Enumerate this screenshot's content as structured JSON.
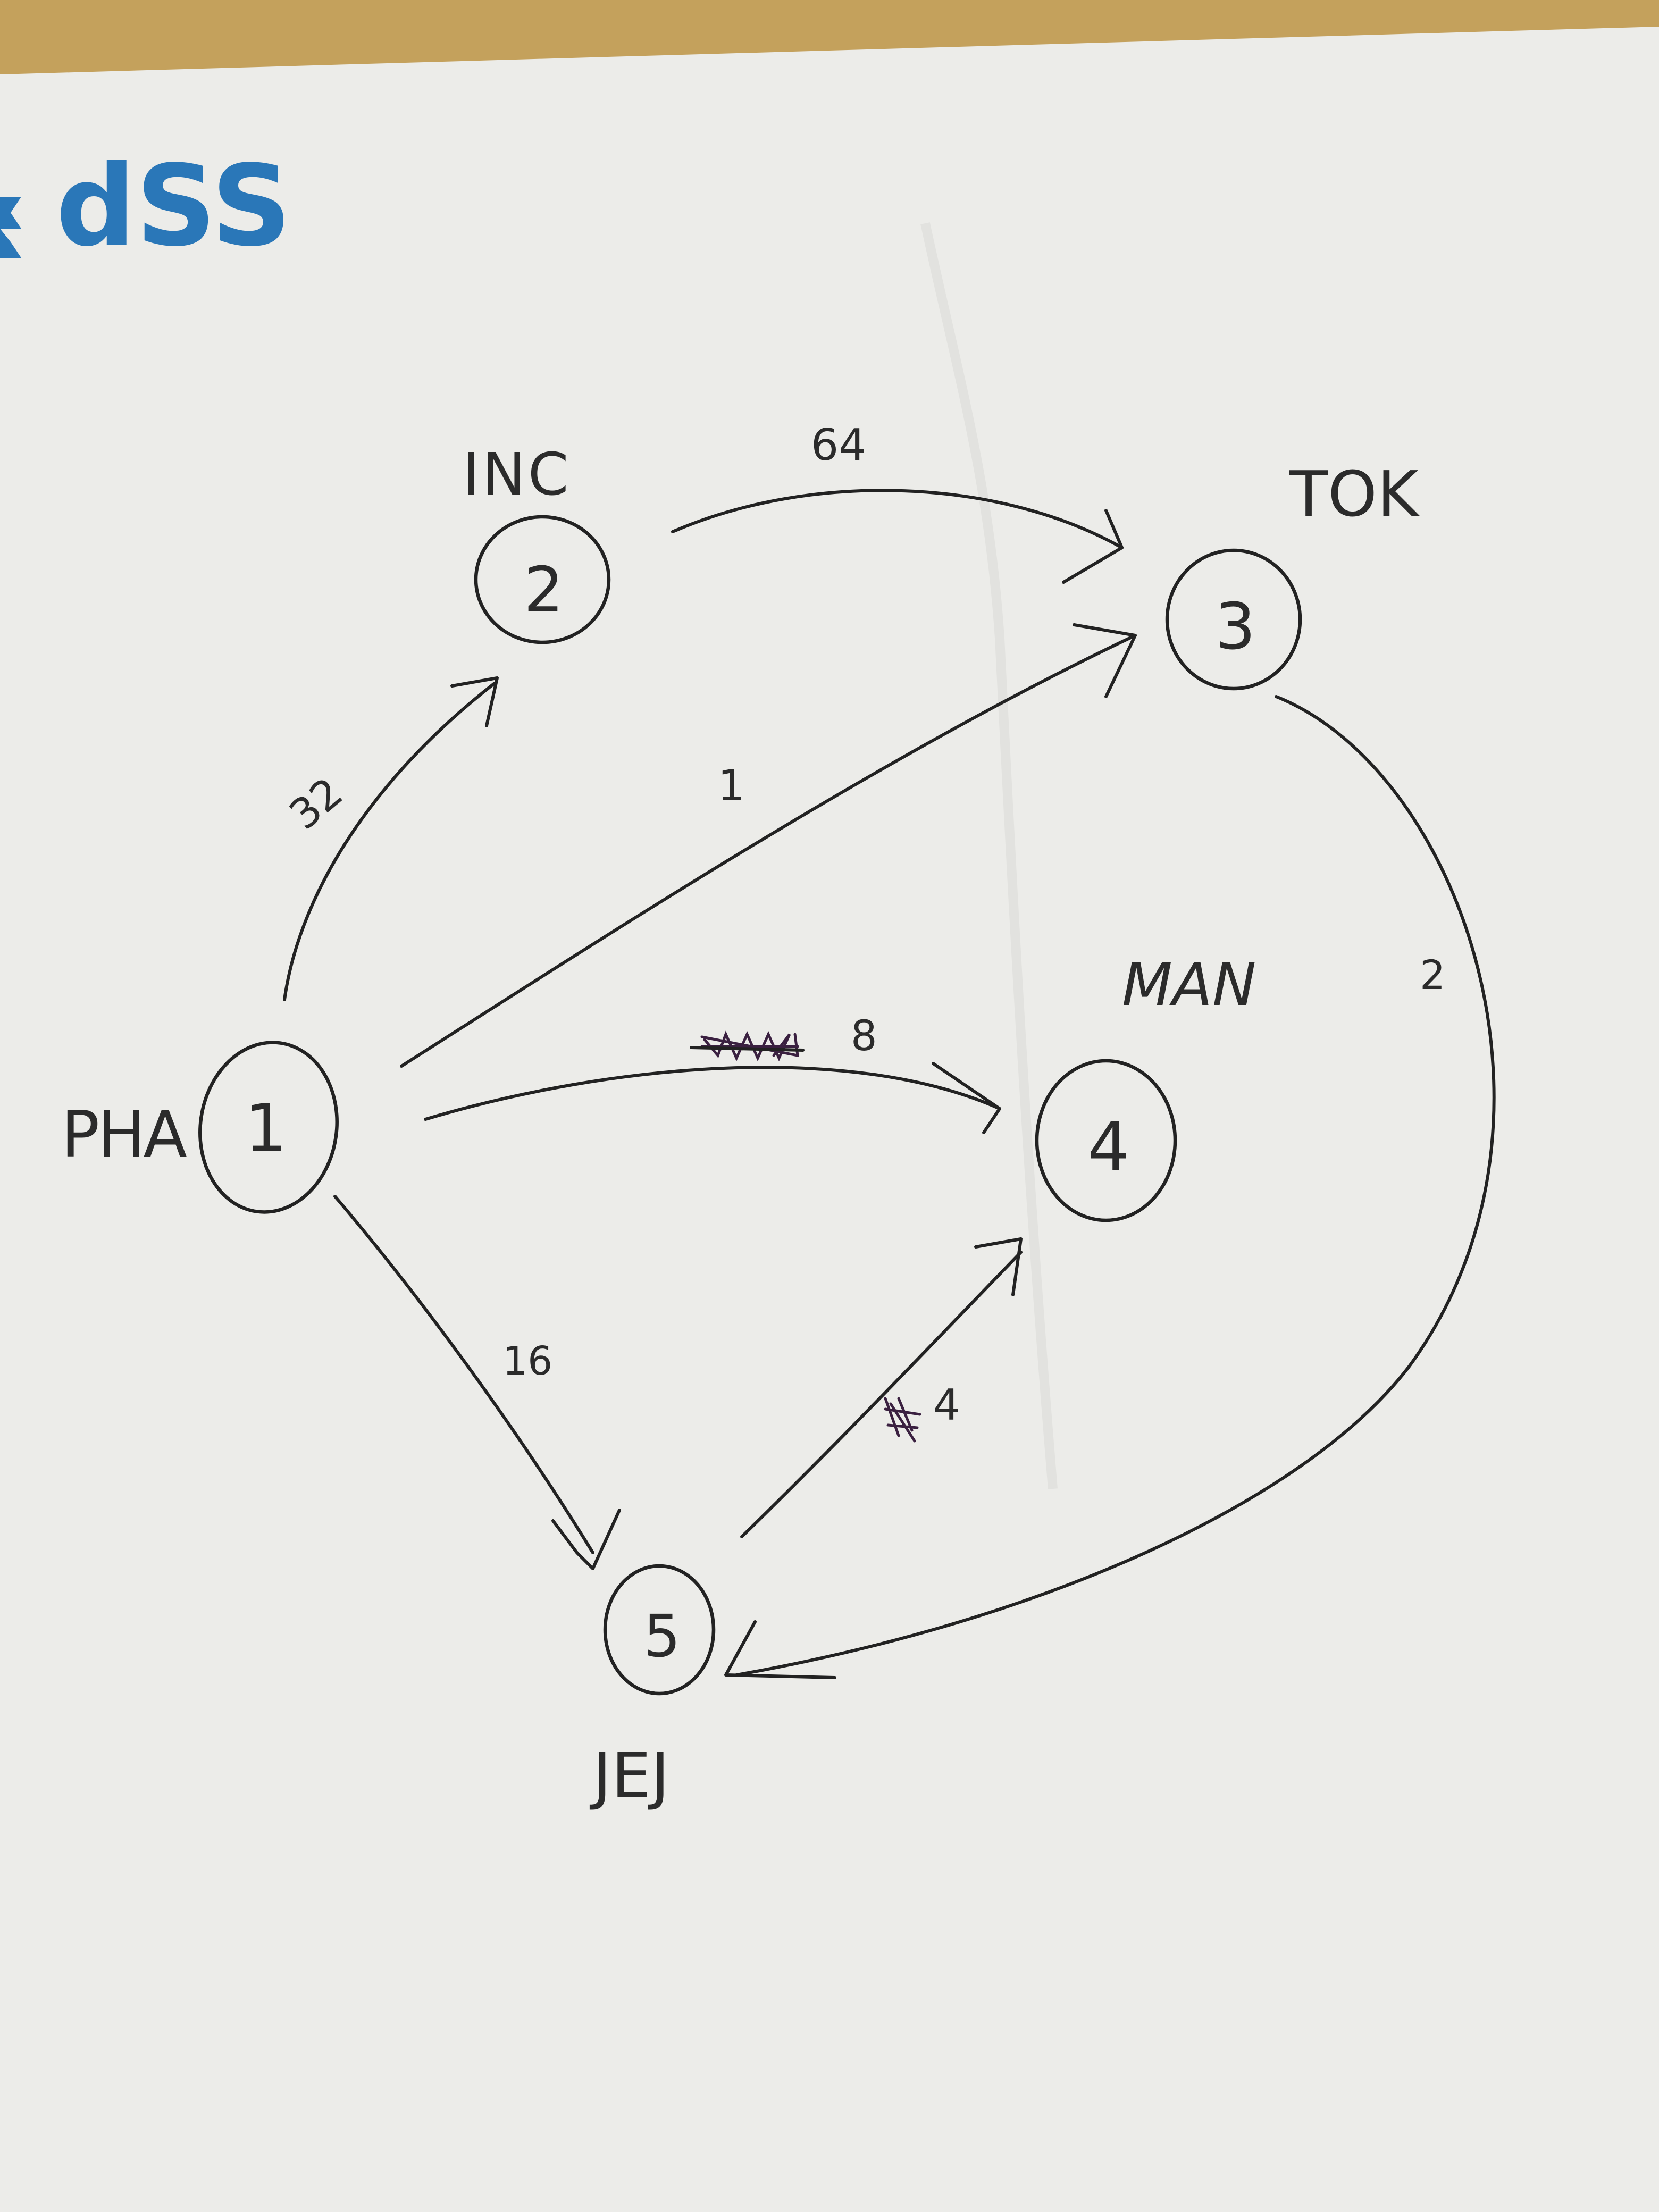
{
  "logo": {
    "text": "dSS",
    "color": "#2a77b8"
  },
  "paper": {
    "background": "#ecece9",
    "table_color": "#c4a15c"
  },
  "nodes": [
    {
      "id": "1",
      "label": "PHA"
    },
    {
      "id": "2",
      "label": "INC"
    },
    {
      "id": "3",
      "label": "TOK"
    },
    {
      "id": "4",
      "label": "MAN"
    },
    {
      "id": "5",
      "label": "JEJ"
    }
  ],
  "edges": [
    {
      "from": "1",
      "to": "2",
      "weight": "32"
    },
    {
      "from": "2",
      "to": "3",
      "weight": "64"
    },
    {
      "from": "1",
      "to": "3",
      "weight": "1"
    },
    {
      "from": "1",
      "to": "4",
      "weight": "8"
    },
    {
      "from": "1",
      "to": "5",
      "weight": "16"
    },
    {
      "from": "5",
      "to": "4",
      "weight": "4"
    },
    {
      "from": "3",
      "to": "5",
      "weight": "2"
    }
  ]
}
